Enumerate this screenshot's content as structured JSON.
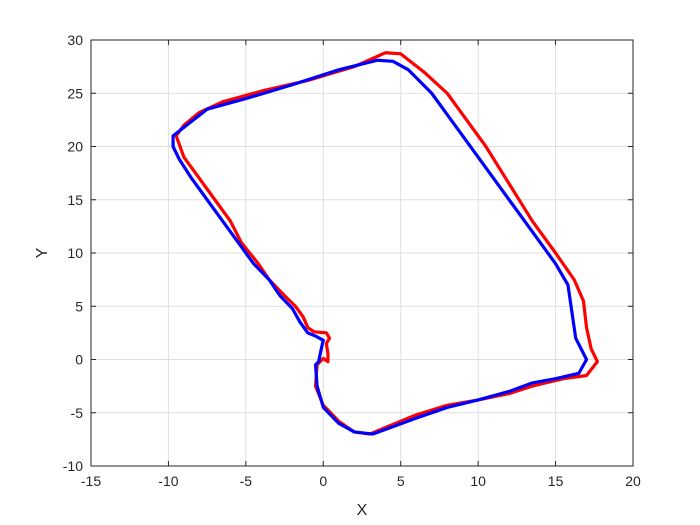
{
  "chart_data": {
    "type": "line",
    "title": "",
    "xlabel": "X",
    "ylabel": "Y",
    "xlim": [
      -15,
      20
    ],
    "ylim": [
      -10,
      30
    ],
    "xticks": [
      -15,
      -10,
      -5,
      0,
      5,
      10,
      15,
      20
    ],
    "yticks": [
      -10,
      -5,
      0,
      5,
      10,
      15,
      20,
      25,
      30
    ],
    "grid": true,
    "series": [
      {
        "color": "#ff0000",
        "points": [
          [
            0.3,
            -0.2
          ],
          [
            0.3,
            0.5
          ],
          [
            0.2,
            1.5
          ],
          [
            0.4,
            2.0
          ],
          [
            0.2,
            2.5
          ],
          [
            -0.6,
            2.6
          ],
          [
            -1.0,
            3.0
          ],
          [
            -1.3,
            4.0
          ],
          [
            -1.8,
            5.0
          ],
          [
            -2.5,
            6.0
          ],
          [
            -3.5,
            7.5
          ],
          [
            -4.2,
            9.0
          ],
          [
            -5.3,
            11.0
          ],
          [
            -6.0,
            13.0
          ],
          [
            -7.0,
            15.0
          ],
          [
            -8.0,
            17.0
          ],
          [
            -9.0,
            19.0
          ],
          [
            -9.5,
            21.0
          ],
          [
            -9.0,
            22.0
          ],
          [
            -8.0,
            23.2
          ],
          [
            -6.5,
            24.2
          ],
          [
            -4.0,
            25.2
          ],
          [
            -1.0,
            26.2
          ],
          [
            2.0,
            27.5
          ],
          [
            4.0,
            28.8
          ],
          [
            5.0,
            28.7
          ],
          [
            6.5,
            27.0
          ],
          [
            8.0,
            25.0
          ],
          [
            9.0,
            23.0
          ],
          [
            10.5,
            20.0
          ],
          [
            12.0,
            16.5
          ],
          [
            13.5,
            13.0
          ],
          [
            15.0,
            10.0
          ],
          [
            16.2,
            7.5
          ],
          [
            16.8,
            5.5
          ],
          [
            17.0,
            3.0
          ],
          [
            17.3,
            1.0
          ],
          [
            17.7,
            -0.2
          ],
          [
            17.0,
            -1.5
          ],
          [
            15.5,
            -1.8
          ],
          [
            13.5,
            -2.5
          ],
          [
            12.0,
            -3.2
          ],
          [
            10.0,
            -3.8
          ],
          [
            8.0,
            -4.3
          ],
          [
            6.0,
            -5.2
          ],
          [
            3.0,
            -7.0
          ],
          [
            2.0,
            -6.8
          ],
          [
            1.0,
            -5.8
          ],
          [
            0.0,
            -4.3
          ],
          [
            -0.5,
            -2.5
          ],
          [
            -0.4,
            -0.5
          ],
          [
            0.0,
            0.1
          ],
          [
            0.3,
            -0.2
          ]
        ]
      },
      {
        "color": "#0000ff",
        "points": [
          [
            -0.3,
            -0.2
          ],
          [
            -0.2,
            0.5
          ],
          [
            -0.1,
            1.2
          ],
          [
            0.0,
            1.8
          ],
          [
            -0.5,
            2.2
          ],
          [
            -1.0,
            2.5
          ],
          [
            -1.5,
            3.5
          ],
          [
            -2.0,
            4.8
          ],
          [
            -2.8,
            6.0
          ],
          [
            -3.5,
            7.5
          ],
          [
            -4.5,
            9.0
          ],
          [
            -5.5,
            11.0
          ],
          [
            -6.5,
            13.0
          ],
          [
            -7.5,
            15.0
          ],
          [
            -8.5,
            17.0
          ],
          [
            -9.3,
            18.8
          ],
          [
            -9.7,
            20.0
          ],
          [
            -9.7,
            21.0
          ],
          [
            -9.0,
            21.8
          ],
          [
            -7.5,
            23.5
          ],
          [
            -5.0,
            24.5
          ],
          [
            -2.0,
            25.8
          ],
          [
            1.0,
            27.2
          ],
          [
            3.5,
            28.1
          ],
          [
            4.5,
            28.0
          ],
          [
            5.5,
            27.2
          ],
          [
            7.0,
            25.0
          ],
          [
            8.0,
            23.0
          ],
          [
            9.0,
            21.0
          ],
          [
            10.5,
            18.0
          ],
          [
            12.0,
            15.0
          ],
          [
            13.5,
            12.0
          ],
          [
            15.0,
            9.0
          ],
          [
            15.8,
            7.0
          ],
          [
            16.0,
            5.0
          ],
          [
            16.3,
            2.0
          ],
          [
            17.0,
            0.0
          ],
          [
            16.5,
            -1.3
          ],
          [
            15.0,
            -1.8
          ],
          [
            13.5,
            -2.2
          ],
          [
            12.0,
            -3.0
          ],
          [
            10.0,
            -3.8
          ],
          [
            8.0,
            -4.5
          ],
          [
            6.0,
            -5.5
          ],
          [
            3.2,
            -7.0
          ],
          [
            2.0,
            -6.8
          ],
          [
            1.0,
            -6.0
          ],
          [
            0.0,
            -4.5
          ],
          [
            -0.4,
            -2.5
          ],
          [
            -0.5,
            -0.5
          ],
          [
            -0.3,
            -0.2
          ]
        ]
      }
    ]
  }
}
